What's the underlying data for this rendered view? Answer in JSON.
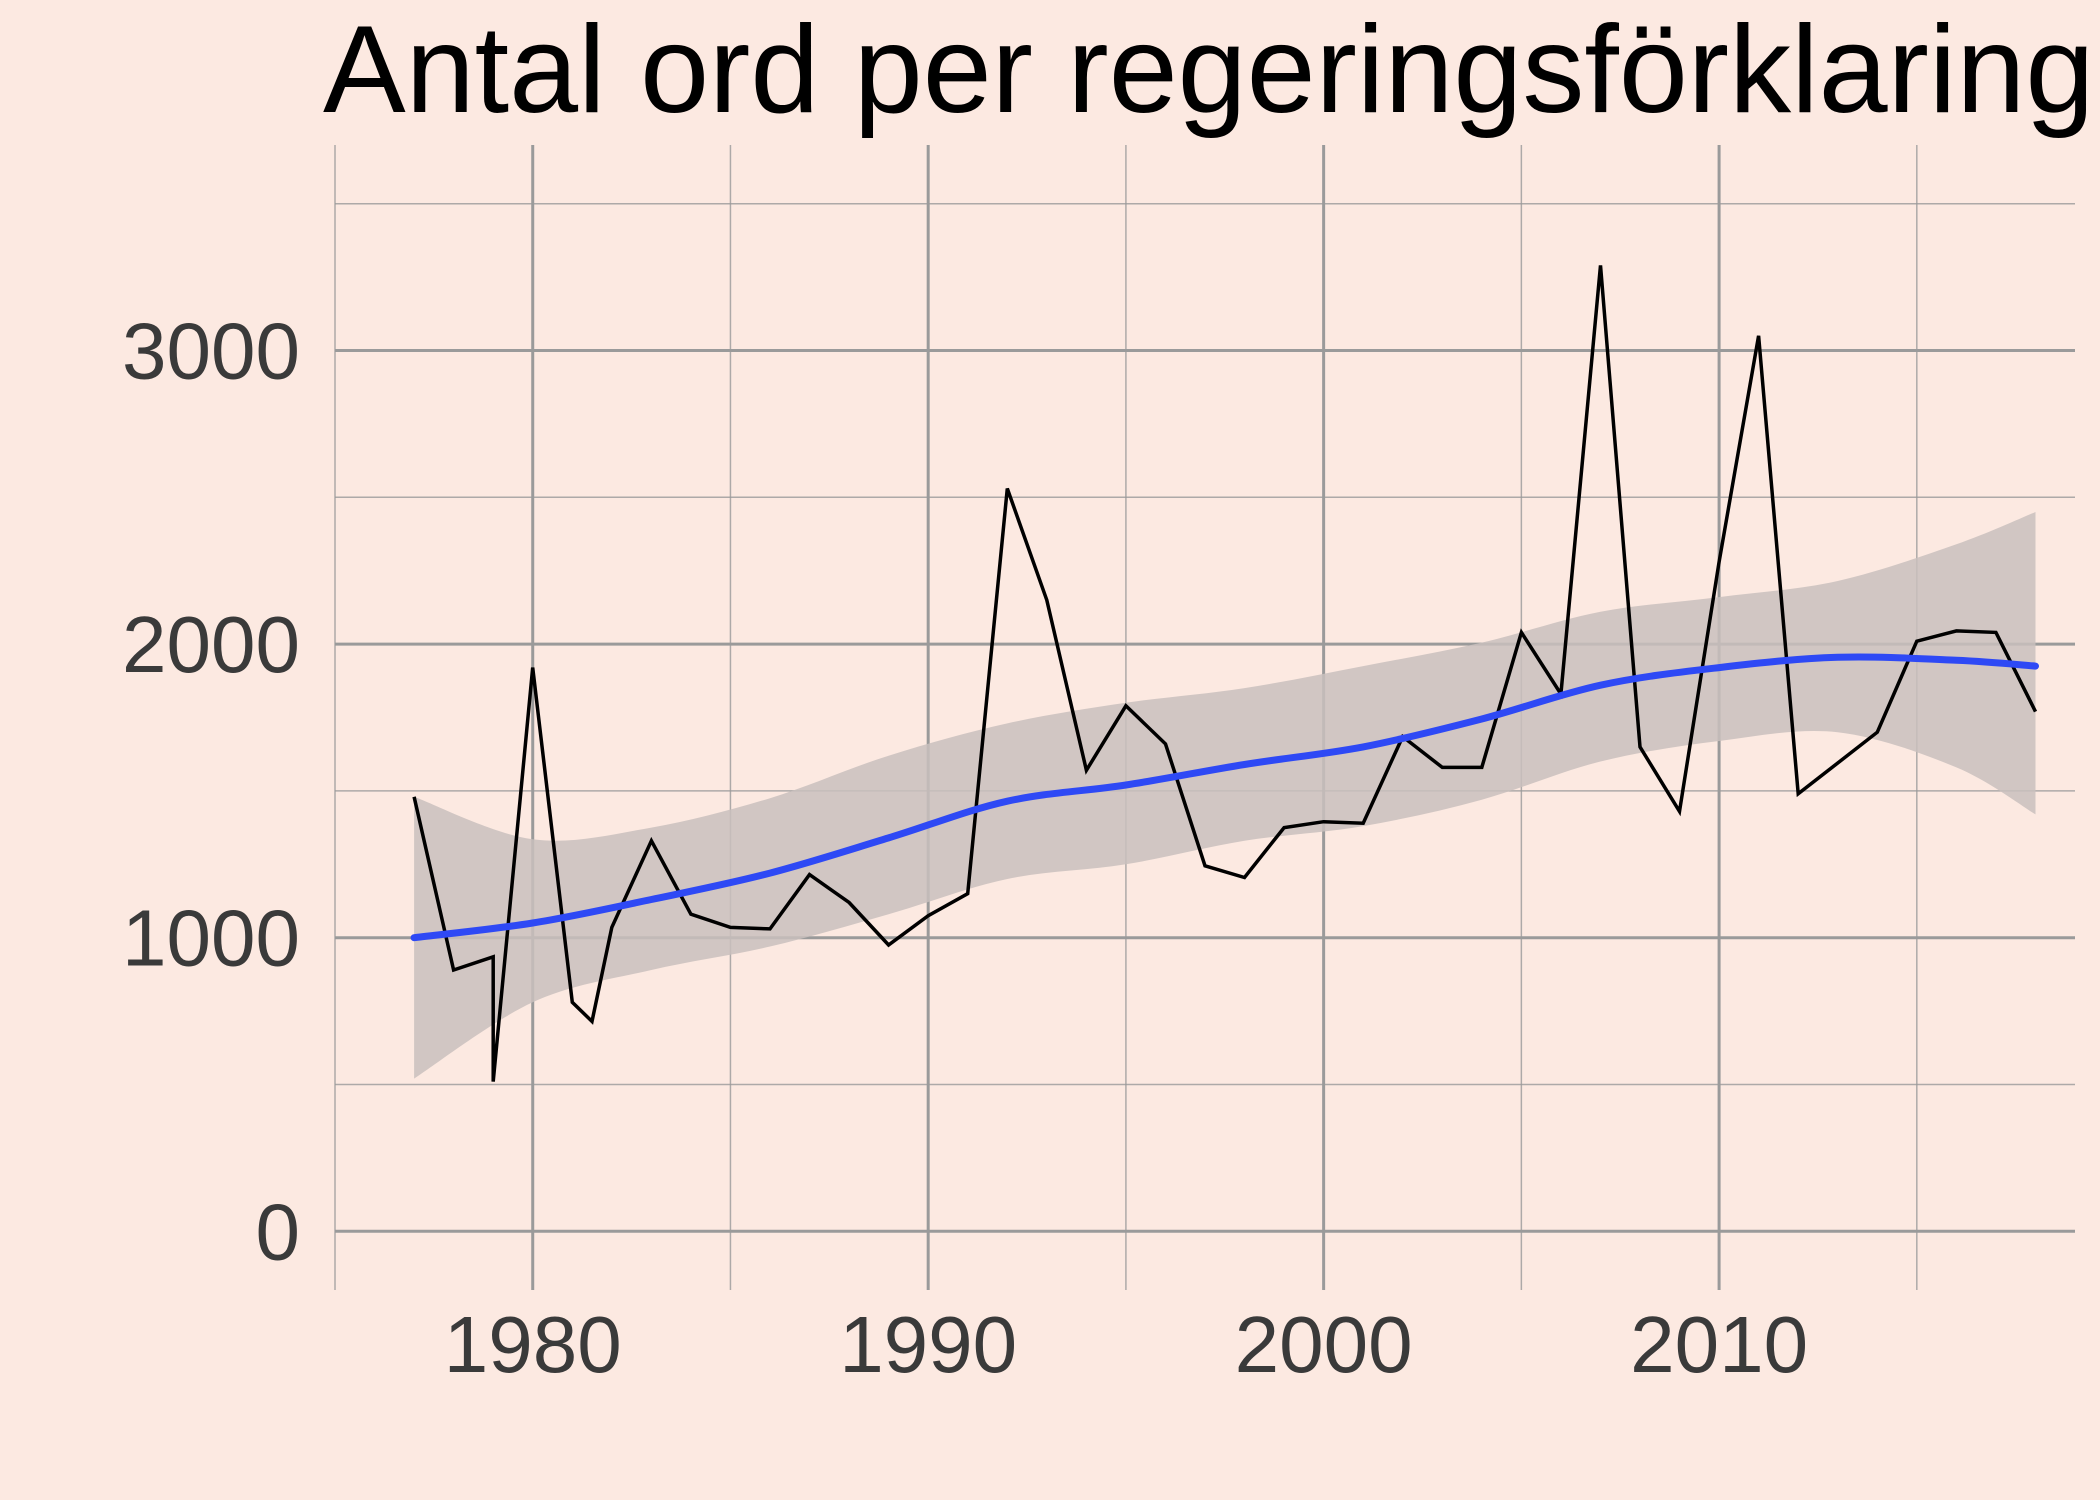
{
  "chart_data": {
    "type": "line",
    "title": "Antal ord per regeringsförklaring",
    "xlabel": "",
    "ylabel": "",
    "xlim": [
      1975,
      2019
    ],
    "ylim": [
      -200,
      3700
    ],
    "x_ticks": [
      1980,
      1990,
      2000,
      2010
    ],
    "y_ticks": [
      0,
      1000,
      2000,
      3000
    ],
    "x_ticks_minor": [
      1975,
      1985,
      1995,
      2005,
      2015
    ],
    "y_ticks_minor": [
      500,
      1500,
      2500,
      3500
    ],
    "grid": true,
    "legend": "none",
    "colors": {
      "background": "#FCE9E1",
      "line": "#000000",
      "smooth": "#2E49F5",
      "band": "#C9C0BD",
      "grid": "#9A9A9A"
    },
    "series": [
      {
        "x": [
          1977,
          1978,
          1979,
          1979,
          1980,
          1981,
          1981.5,
          1982,
          1983,
          1984,
          1985,
          1986,
          1987,
          1988,
          1989,
          1990,
          1991,
          1992,
          1993,
          1994,
          1995,
          1996,
          1997,
          1998,
          1999,
          2000,
          2001,
          2002,
          2003,
          2004,
          2005,
          2006,
          2007,
          2008,
          2009,
          2010,
          2011,
          2012,
          2014,
          2015,
          2016,
          2017,
          2018
        ],
        "y": [
          1480,
          890,
          935,
          510,
          1920,
          780,
          715,
          1035,
          1330,
          1080,
          1035,
          1030,
          1215,
          1120,
          975,
          1075,
          1150,
          2530,
          2150,
          1570,
          1790,
          1660,
          1245,
          1205,
          1375,
          1395,
          1390,
          1685,
          1580,
          1580,
          2040,
          1830,
          3290,
          1650,
          1430,
          2280,
          3050,
          1490,
          1700,
          2010,
          2045,
          2040,
          1770
        ]
      },
      {
        "type": "smooth",
        "x": [
          1977,
          1980,
          1983,
          1986,
          1989,
          1992,
          1995,
          1998,
          2001,
          2004,
          2007,
          2010,
          2013,
          2016,
          2018
        ],
        "y": [
          1000,
          1050,
          1130,
          1220,
          1340,
          1465,
          1520,
          1590,
          1650,
          1745,
          1860,
          1920,
          1955,
          1945,
          1925
        ],
        "lower": [
          520,
          780,
          890,
          970,
          1080,
          1200,
          1250,
          1330,
          1380,
          1470,
          1600,
          1670,
          1700,
          1580,
          1420
        ],
        "upper": [
          1480,
          1335,
          1375,
          1475,
          1620,
          1730,
          1800,
          1850,
          1925,
          2005,
          2110,
          2160,
          2215,
          2340,
          2450
        ]
      }
    ]
  }
}
